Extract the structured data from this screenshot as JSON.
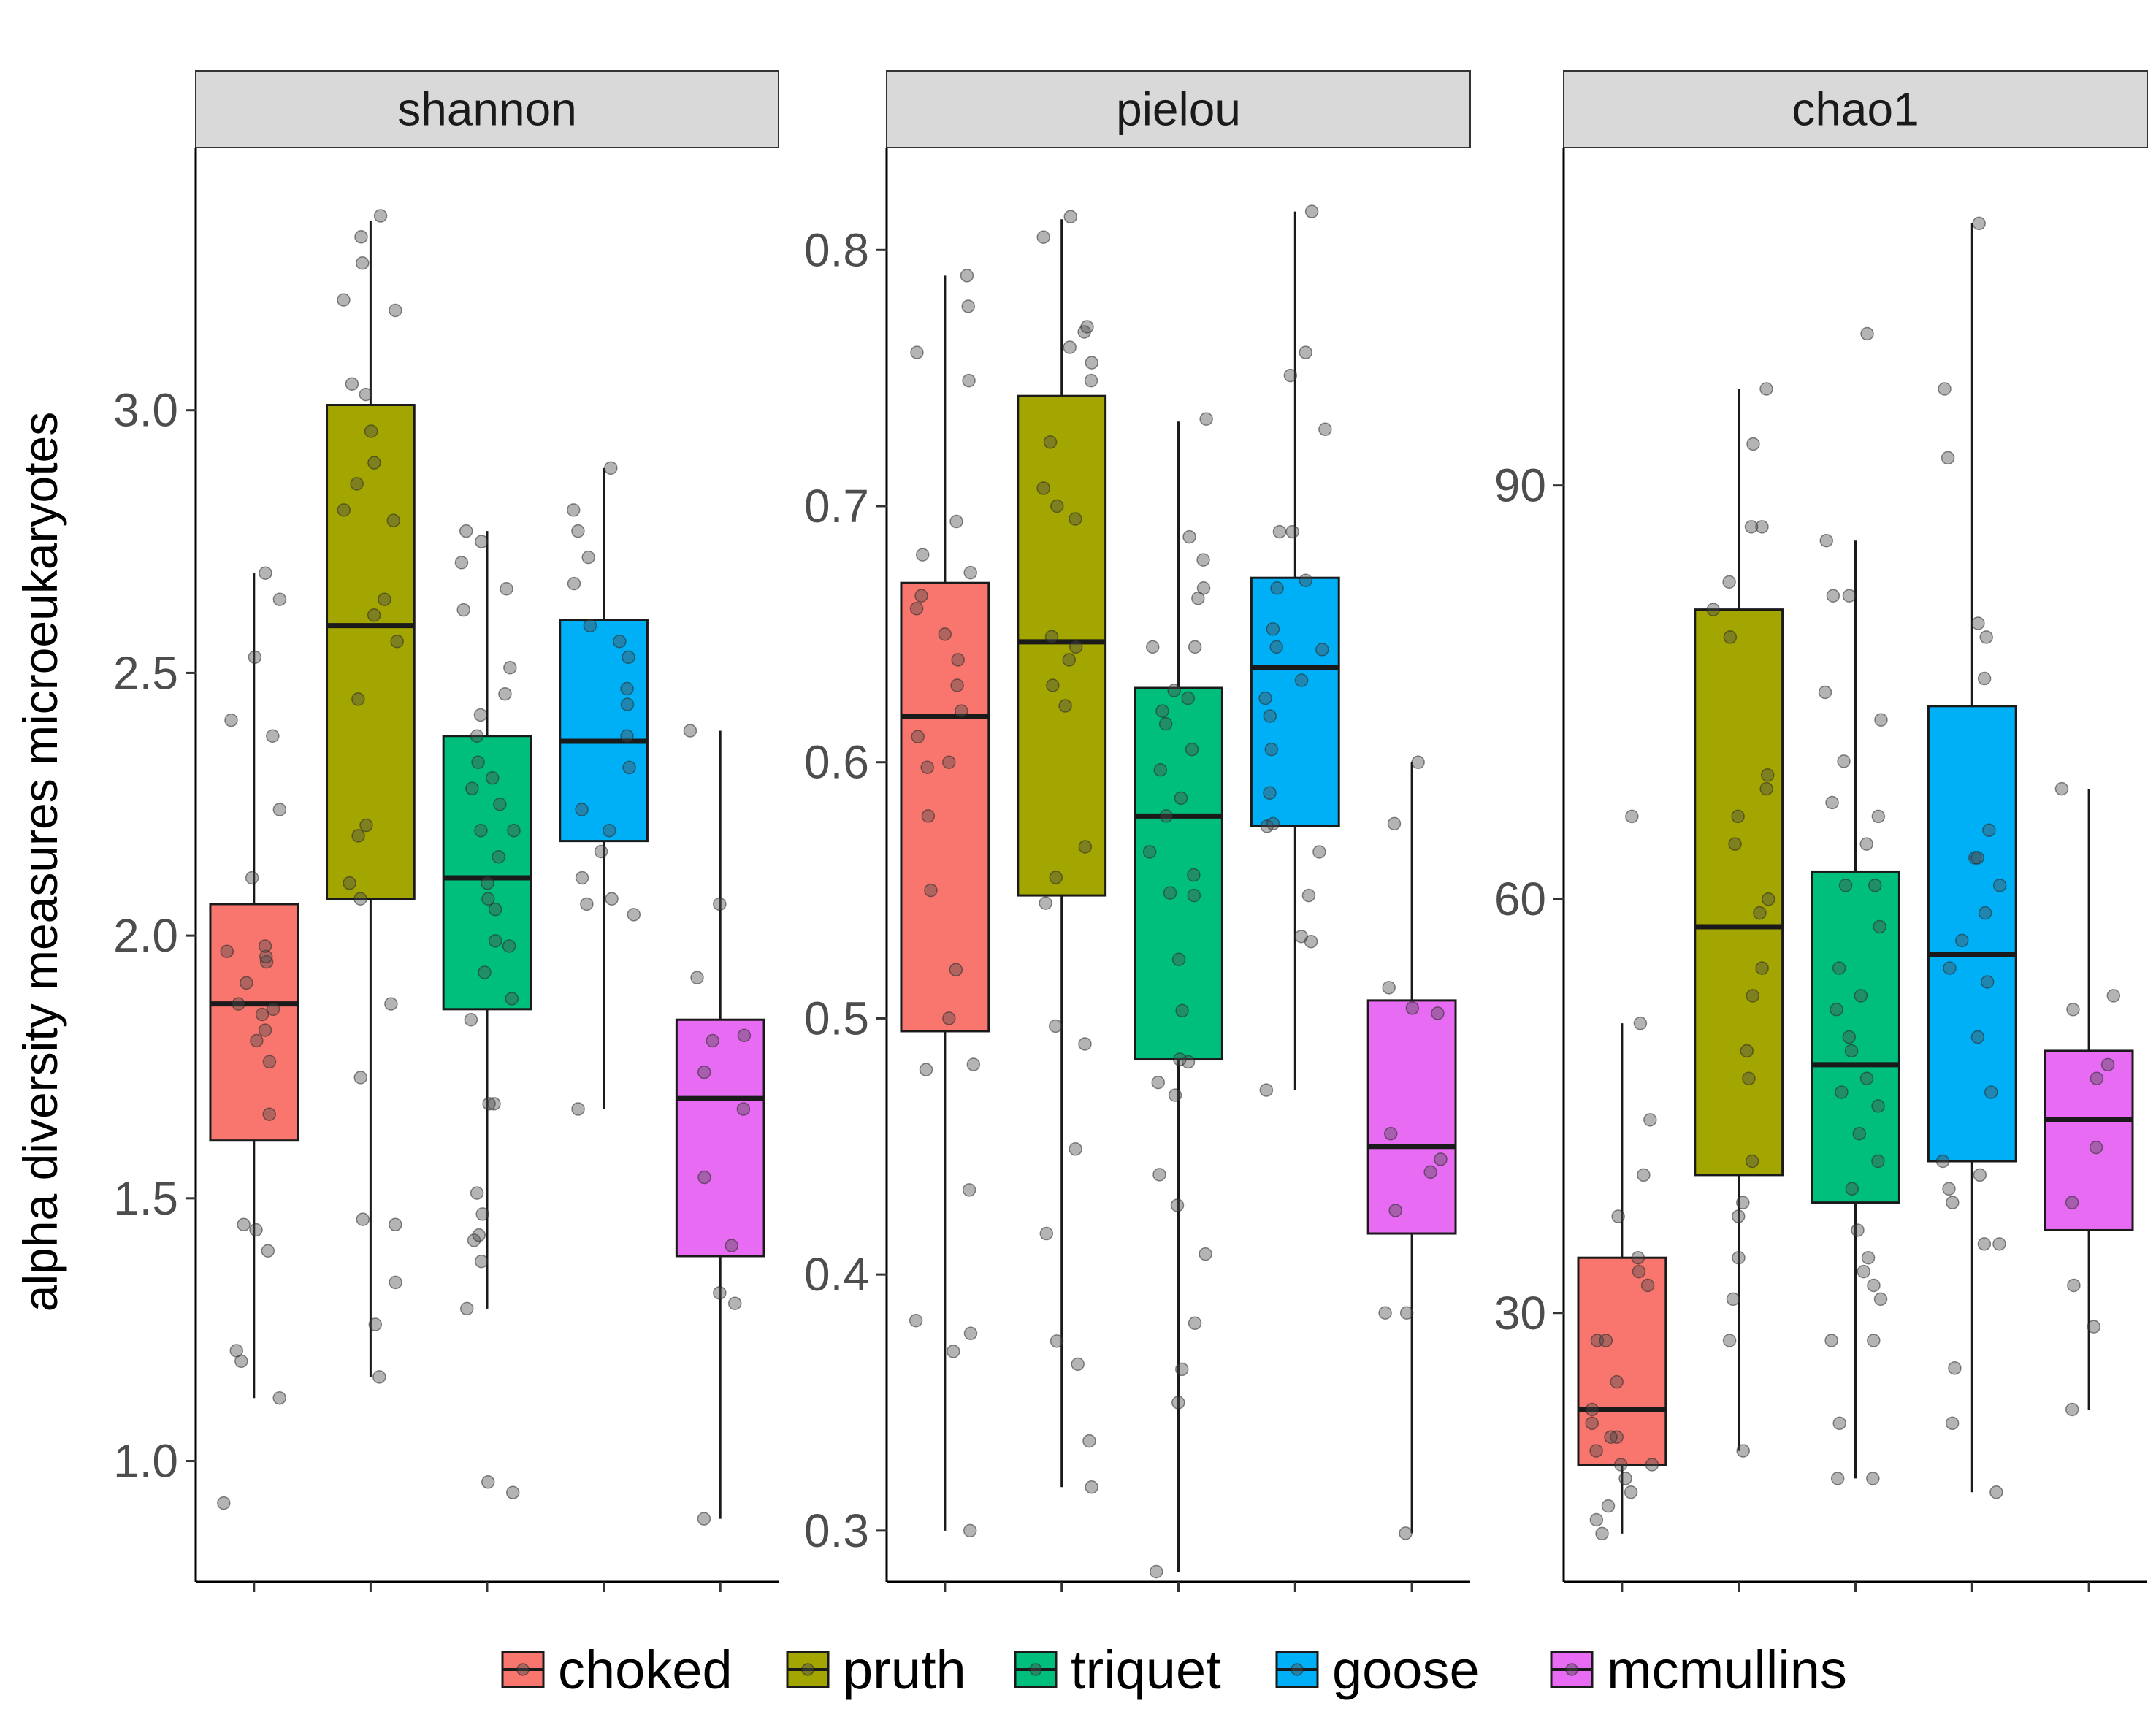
{
  "chart_data": {
    "type": "boxplot",
    "ylabel": "alpha diversity measures microeukaryotes",
    "xlabel": "",
    "legend": {
      "placement": "bottom",
      "entries": [
        "choked",
        "pruth",
        "triquet",
        "goose",
        "mcmullins"
      ]
    },
    "groups": [
      "choked",
      "pruth",
      "triquet",
      "goose",
      "mcmullins"
    ],
    "colors": {
      "choked": "#F8766D",
      "pruth": "#A3A500",
      "triquet": "#00BF7D",
      "goose": "#00B0F6",
      "mcmullins": "#E76BF3",
      "strip": "#D9D9D9",
      "points": "#4D4D4D"
    },
    "grid": false,
    "panels": [
      {
        "title": "shannon",
        "ylim": [
          0.77,
          3.5
        ],
        "yticks": [
          1.0,
          1.5,
          2.0,
          2.5,
          3.0
        ],
        "ytick_labels": [
          "1.0",
          "1.5",
          "2.0",
          "2.5",
          "3.0"
        ],
        "boxes": [
          {
            "group": "choked",
            "whisker_low": 1.12,
            "q1": 1.61,
            "median": 1.87,
            "q3": 2.06,
            "whisker_high": 2.69,
            "points": [
              0.92,
              1.12,
              1.19,
              1.21,
              1.4,
              1.44,
              1.45,
              1.66,
              1.76,
              1.8,
              1.82,
              1.85,
              1.86,
              1.87,
              1.91,
              1.95,
              1.96,
              1.97,
              1.98,
              2.11,
              2.24,
              2.38,
              2.41,
              2.53,
              2.64,
              2.69
            ]
          },
          {
            "group": "pruth",
            "whisker_low": 1.16,
            "q1": 2.07,
            "median": 2.59,
            "q3": 3.01,
            "whisker_high": 3.36,
            "points": [
              1.16,
              1.26,
              1.34,
              1.45,
              1.46,
              1.73,
              1.87,
              2.07,
              2.1,
              2.19,
              2.21,
              2.45,
              2.56,
              2.61,
              2.64,
              2.79,
              2.81,
              2.86,
              2.9,
              2.96,
              3.03,
              3.05,
              3.19,
              3.21,
              3.28,
              3.33,
              3.37
            ]
          },
          {
            "group": "triquet",
            "whisker_low": 1.29,
            "q1": 1.86,
            "median": 2.11,
            "q3": 2.38,
            "whisker_high": 2.77,
            "points": [
              0.94,
              0.96,
              1.29,
              1.38,
              1.42,
              1.43,
              1.47,
              1.51,
              1.68,
              1.68,
              1.84,
              1.88,
              1.93,
              1.98,
              1.99,
              2.05,
              2.07,
              2.1,
              2.15,
              2.2,
              2.2,
              2.25,
              2.28,
              2.3,
              2.33,
              2.38,
              2.42,
              2.46,
              2.51,
              2.62,
              2.66,
              2.71,
              2.75,
              2.77
            ]
          },
          {
            "group": "goose",
            "whisker_low": 1.67,
            "q1": 2.18,
            "median": 2.37,
            "q3": 2.6,
            "whisker_high": 2.89,
            "points": [
              1.67,
              2.04,
              2.06,
              2.07,
              2.11,
              2.16,
              2.2,
              2.24,
              2.32,
              2.38,
              2.44,
              2.47,
              2.53,
              2.56,
              2.59,
              2.67,
              2.72,
              2.77,
              2.81,
              2.89
            ]
          },
          {
            "group": "mcmullins",
            "whisker_low": 0.89,
            "q1": 1.39,
            "median": 1.69,
            "q3": 1.84,
            "whisker_high": 2.39,
            "points": [
              0.89,
              1.3,
              1.32,
              1.41,
              1.54,
              1.67,
              1.74,
              1.8,
              1.81,
              1.92,
              2.06,
              2.39
            ]
          }
        ]
      },
      {
        "title": "pielou",
        "ylim": [
          0.28,
          0.84
        ],
        "yticks": [
          0.3,
          0.4,
          0.5,
          0.6,
          0.7,
          0.8
        ],
        "ytick_labels": [
          "0.3",
          "0.4",
          "0.5",
          "0.6",
          "0.7",
          "0.8"
        ],
        "boxes": [
          {
            "group": "choked",
            "whisker_low": 0.3,
            "q1": 0.495,
            "median": 0.618,
            "q3": 0.67,
            "whisker_high": 0.79,
            "points": [
              0.3,
              0.37,
              0.377,
              0.382,
              0.433,
              0.48,
              0.482,
              0.5,
              0.519,
              0.55,
              0.579,
              0.598,
              0.6,
              0.61,
              0.62,
              0.63,
              0.64,
              0.65,
              0.66,
              0.665,
              0.674,
              0.681,
              0.694,
              0.749,
              0.76,
              0.778,
              0.79
            ]
          },
          {
            "group": "pruth",
            "whisker_low": 0.317,
            "q1": 0.548,
            "median": 0.647,
            "q3": 0.743,
            "whisker_high": 0.812,
            "points": [
              0.317,
              0.335,
              0.365,
              0.374,
              0.416,
              0.449,
              0.49,
              0.497,
              0.545,
              0.555,
              0.567,
              0.622,
              0.63,
              0.64,
              0.645,
              0.649,
              0.695,
              0.7,
              0.707,
              0.725,
              0.749,
              0.756,
              0.762,
              0.768,
              0.77,
              0.805,
              0.813
            ]
          },
          {
            "group": "triquet",
            "whisker_low": 0.284,
            "q1": 0.484,
            "median": 0.579,
            "q3": 0.629,
            "whisker_high": 0.733,
            "points": [
              0.284,
              0.35,
              0.363,
              0.381,
              0.408,
              0.427,
              0.439,
              0.47,
              0.475,
              0.483,
              0.484,
              0.503,
              0.523,
              0.548,
              0.549,
              0.556,
              0.565,
              0.579,
              0.586,
              0.597,
              0.605,
              0.615,
              0.62,
              0.625,
              0.628,
              0.645,
              0.645,
              0.664,
              0.668,
              0.679,
              0.688,
              0.734
            ]
          },
          {
            "group": "goose",
            "whisker_low": 0.472,
            "q1": 0.575,
            "median": 0.637,
            "q3": 0.672,
            "whisker_high": 0.815,
            "points": [
              0.472,
              0.53,
              0.532,
              0.548,
              0.565,
              0.575,
              0.576,
              0.588,
              0.605,
              0.618,
              0.625,
              0.632,
              0.644,
              0.645,
              0.652,
              0.668,
              0.671,
              0.69,
              0.69,
              0.73,
              0.751,
              0.76,
              0.815
            ]
          },
          {
            "group": "mcmullins",
            "whisker_low": 0.299,
            "q1": 0.416,
            "median": 0.45,
            "q3": 0.507,
            "whisker_high": 0.6,
            "points": [
              0.299,
              0.385,
              0.385,
              0.425,
              0.44,
              0.445,
              0.455,
              0.502,
              0.504,
              0.512,
              0.576,
              0.6
            ]
          }
        ]
      },
      {
        "title": "chao1",
        "ylim": [
          10.5,
          114.5
        ],
        "yticks": [
          30,
          60,
          90
        ],
        "ytick_labels": [
          "30",
          "60",
          "90"
        ],
        "boxes": [
          {
            "group": "choked",
            "whisker_low": 14,
            "q1": 19,
            "median": 23,
            "q3": 34,
            "whisker_high": 51,
            "points": [
              14,
              15,
              16,
              17,
              18,
              19,
              19,
              20,
              21,
              21,
              22,
              23,
              25,
              28,
              28,
              32,
              33,
              34,
              37,
              40,
              44,
              51,
              66
            ]
          },
          {
            "group": "pruth",
            "whisker_low": 20,
            "q1": 40,
            "median": 58,
            "q3": 81,
            "whisker_high": 97,
            "points": [
              20,
              28,
              31,
              34,
              37,
              38,
              41,
              47,
              49,
              53,
              55,
              59,
              60,
              64,
              66,
              68,
              69,
              79,
              81,
              83,
              87,
              87,
              93,
              97
            ]
          },
          {
            "group": "triquet",
            "whisker_low": 18,
            "q1": 38,
            "median": 48,
            "q3": 62,
            "whisker_high": 86,
            "points": [
              18,
              18,
              22,
              28,
              28,
              31,
              32,
              33,
              34,
              36,
              39,
              41,
              43,
              45,
              46,
              47,
              49,
              50,
              52,
              53,
              55,
              58,
              61,
              61,
              64,
              66,
              67,
              70,
              73,
              75,
              82,
              82,
              86,
              101
            ]
          },
          {
            "group": "goose",
            "whisker_low": 17,
            "q1": 41,
            "median": 56,
            "q3": 74,
            "whisker_high": 109,
            "points": [
              17,
              22,
              26,
              35,
              35,
              38,
              39,
              40,
              41,
              46,
              50,
              54,
              55,
              57,
              59,
              61,
              63,
              63,
              65,
              76,
              79,
              80,
              92,
              97,
              109
            ]
          },
          {
            "group": "mcmullins",
            "whisker_low": 23,
            "q1": 36,
            "median": 44,
            "q3": 49,
            "whisker_high": 68,
            "points": [
              23,
              29,
              32,
              38,
              42,
              47,
              48,
              52,
              53,
              68
            ]
          }
        ]
      }
    ]
  }
}
